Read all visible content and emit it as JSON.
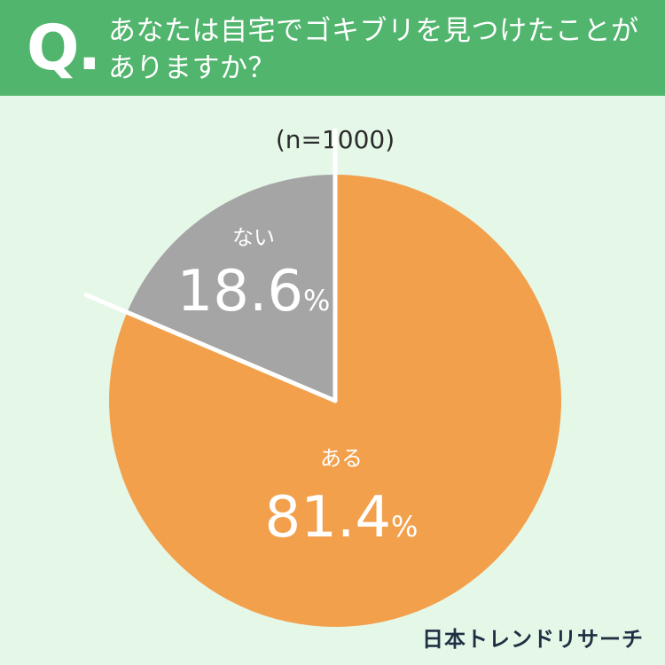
{
  "header": {
    "q_mark": "Q.",
    "question": "あなたは自宅でゴキブリを見つけたことがありますか？"
  },
  "colors": {
    "header_bg": "#52b56e",
    "page_bg": "#e5f8e8",
    "slice_yes": "#f2a04c",
    "slice_no": "#a5a5a5",
    "separator": "#ffffff"
  },
  "chart_data": {
    "type": "pie",
    "title": "",
    "sample_size": "(n=1000)",
    "start_angle": "12 o'clock",
    "direction": "clockwise",
    "slices": [
      {
        "label": "ある",
        "value": 81.4,
        "display": "81.4",
        "unit": "%",
        "color": "#f2a04c"
      },
      {
        "label": "ない",
        "value": 18.6,
        "display": "18.6",
        "unit": "%",
        "color": "#a5a5a5"
      }
    ]
  },
  "brand": {
    "logo_text": "日本トレンドリサーチ"
  }
}
